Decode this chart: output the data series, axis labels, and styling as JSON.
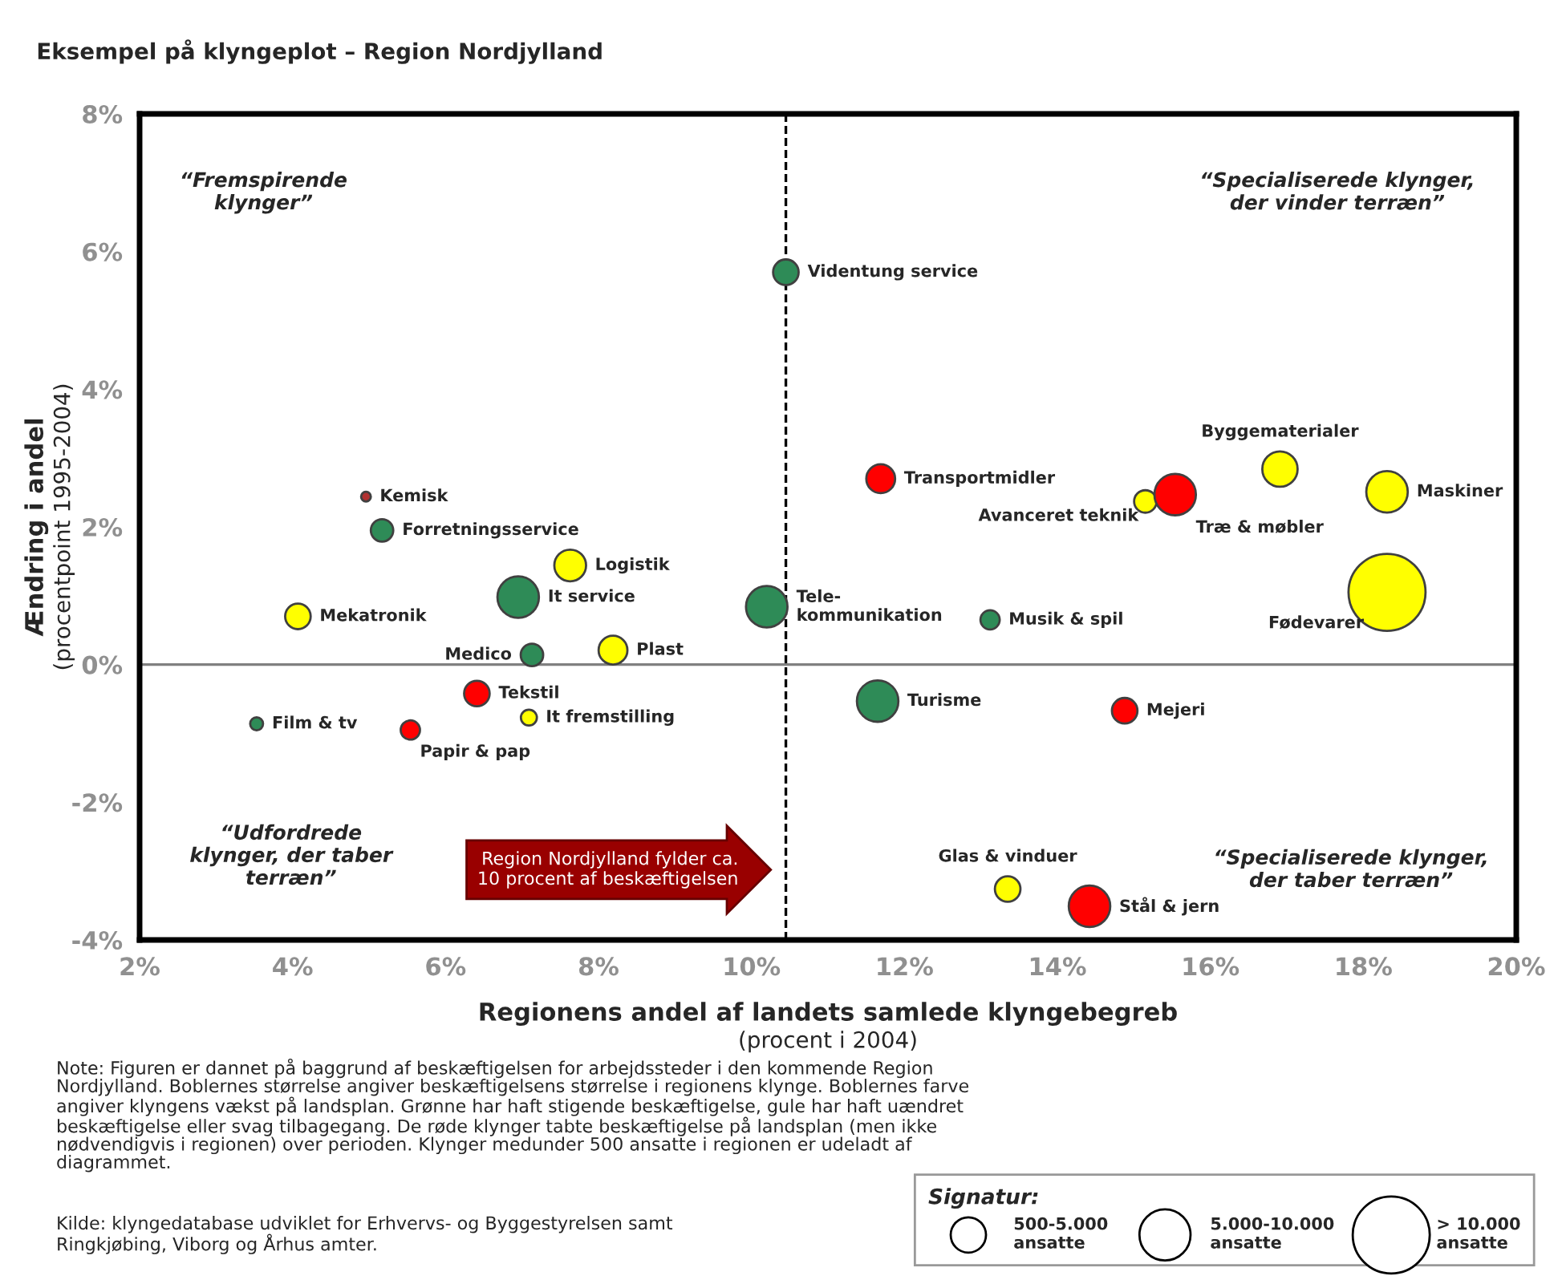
{
  "chart_data": {
    "type": "bubble",
    "title": "Eksempel på klyngeplot – Region Nordjylland",
    "xlabel": "Regionens andel af landets samlede klyngebegreb\n(procent i 2004)",
    "ylabel": "Ændring i andel\n(procentpoint 1995-2004)",
    "xlim": [
      2,
      20
    ],
    "ylim": [
      -4,
      8
    ],
    "xticks": [
      {
        "value": 2,
        "label": "2%"
      },
      {
        "value": 4,
        "label": "4%"
      },
      {
        "value": 6,
        "label": "6%"
      },
      {
        "value": 8,
        "label": "8%"
      },
      {
        "value": 10,
        "label": "10%"
      },
      {
        "value": 12,
        "label": "12%"
      },
      {
        "value": 14,
        "label": "14%"
      },
      {
        "value": 16,
        "label": "16%"
      },
      {
        "value": 18,
        "label": "18%"
      },
      {
        "value": 20,
        "label": "20%"
      }
    ],
    "yticks": [
      {
        "value": -4,
        "label": "-4%"
      },
      {
        "value": -2,
        "label": "-2%"
      },
      {
        "value": 0,
        "label": "0%"
      },
      {
        "value": 2,
        "label": "2%"
      },
      {
        "value": 4,
        "label": "4%"
      },
      {
        "value": 6,
        "label": "6%"
      },
      {
        "value": 8,
        "label": "8%"
      }
    ],
    "grid": false,
    "legend_title": "Signatur:",
    "size_legend": [
      {
        "value": 0.21,
        "label": "500-5.000\nansatte"
      },
      {
        "value": 0.44,
        "label": "5.000-10.000\nansatte"
      },
      {
        "value": 1,
        "label": "> 10.000\nansatte"
      }
    ],
    "ref_lines": [
      {
        "axis": "x",
        "value": 10.45,
        "label": null,
        "color": "#000000",
        "line_style": "dashed"
      },
      {
        "axis": "y",
        "value": 0,
        "label": null,
        "color": "#808080",
        "line_style": "solid"
      }
    ],
    "x": [
      10.45,
      4.96,
      5.17,
      7.63,
      6.95,
      4.07,
      7.13,
      8.19,
      10.2,
      6.41,
      7.09,
      3.53,
      5.54,
      11.69,
      15.15,
      15.54,
      16.91,
      18.31,
      18.31,
      13.12,
      11.65,
      14.88,
      13.35,
      14.42
    ],
    "values": [
      5.7,
      2.44,
      1.95,
      1.44,
      0.98,
      0.7,
      0.14,
      0.21,
      0.84,
      -0.42,
      -0.77,
      -0.86,
      -0.95,
      2.7,
      2.37,
      2.47,
      2.84,
      2.51,
      1.05,
      0.65,
      -0.53,
      -0.67,
      -3.26,
      -3.51
    ],
    "sizes": [
      0.11,
      0.016,
      0.085,
      0.17,
      0.29,
      0.11,
      0.085,
      0.14,
      0.29,
      0.11,
      0.043,
      0.028,
      0.0625,
      0.14,
      0.085,
      0.29,
      0.21,
      0.29,
      1,
      0.0625,
      0.29,
      0.11,
      0.11,
      0.29
    ],
    "colors": [
      "#2e8b57",
      "#b03030",
      "#2e8b57",
      "#ffff00",
      "#2e8b57",
      "#ffff00",
      "#2e8b57",
      "#ffff00",
      "#2e8b57",
      "#ff0000",
      "#ffff00",
      "#2e8b57",
      "#ff0000",
      "#ff0000",
      "#ffff00",
      "#ff0000",
      "#ffff00",
      "#ffff00",
      "#ffff00",
      "#2e8b57",
      "#2e8b57",
      "#ff0000",
      "#ffff00",
      "#ff0000"
    ],
    "annotations": [
      "“Fremspirende\nklynger”",
      "“Specialiserede klynger,\nder vinder terræn”",
      "“Udfordrede\nklynger, der taber\nterræn”",
      "“Specialiserede klynger,\nder taber terræn”",
      "Region Nordjylland fylder ca.\n10 procent af beskæftigelsen",
      "Note: Figuren er dannet på baggrund af beskæftigelsen for arbejdssteder i den kommende Region\nNordjylland. Boblernes størrelse angiver beskæftigelsens størrelse i regionens klynge. Boblernes farve\nangiver klyngens vækst på landsplan. Grønne har haft stigende beskæftigelse, gule har haft uændret\nbeskæftigelse eller svag tilbagegang. De røde klynger tabte beskæftigelse på landsplan (men ikke\nnødvendigvis i regionen) over perioden. Klynger medunder 500 ansatte i regionen er udeladt af\ndiagrammet.",
      "Kilde: klyngedatabase udviklet for Erhvervs- og Byggestyrelsen samt\nRingkjøbing, Viborg og Århus amter.",
      {
        "text": "Videntung service",
        "x": 10.45,
        "y": 5.7
      },
      {
        "text": "Kemisk",
        "x": 4.96,
        "y": 2.44
      },
      {
        "text": "Forretningsservice",
        "x": 5.17,
        "y": 1.95
      },
      {
        "text": "Logistik",
        "x": 7.63,
        "y": 1.44
      },
      {
        "text": "It service",
        "x": 6.95,
        "y": 0.98
      },
      {
        "text": "Mekatronik",
        "x": 4.07,
        "y": 0.7
      },
      {
        "text": "Medico",
        "x": 7.13,
        "y": 0.14
      },
      {
        "text": "Plast",
        "x": 8.19,
        "y": 0.21
      },
      {
        "text": "Tele-\nkommunikation",
        "x": 10.2,
        "y": 0.84
      },
      {
        "text": "Tekstil",
        "x": 6.41,
        "y": -0.42
      },
      {
        "text": "It fremstilling",
        "x": 7.09,
        "y": -0.77
      },
      {
        "text": "Film & tv",
        "x": 3.53,
        "y": -0.86
      },
      {
        "text": "Papir & pap",
        "x": 5.54,
        "y": -0.95
      },
      {
        "text": "Transportmidler",
        "x": 11.69,
        "y": 2.7
      },
      {
        "text": "Avanceret teknik",
        "x": 15.15,
        "y": 2.37
      },
      {
        "text": "Træ & møbler",
        "x": 15.54,
        "y": 2.47
      },
      {
        "text": "Byggematerialer",
        "x": 16.91,
        "y": 2.84
      },
      {
        "text": "Maskiner",
        "x": 18.31,
        "y": 2.51
      },
      {
        "text": "Fødevarer",
        "x": 18.31,
        "y": 1.05
      },
      {
        "text": "Musik & spil",
        "x": 13.12,
        "y": 0.65
      },
      {
        "text": "Turisme",
        "x": 11.65,
        "y": -0.53
      },
      {
        "text": "Mejeri",
        "x": 14.88,
        "y": -0.67
      },
      {
        "text": "Glas & vinduer",
        "x": 13.35,
        "y": -3.26
      },
      {
        "text": "Stål & jern",
        "x": 14.42,
        "y": -3.51
      }
    ]
  }
}
